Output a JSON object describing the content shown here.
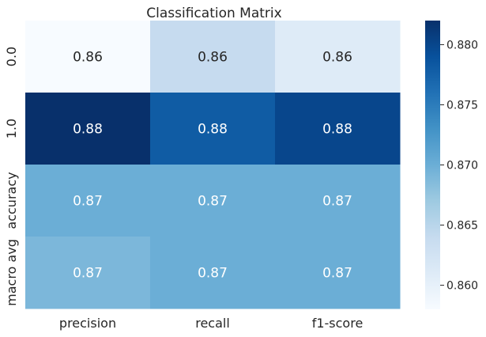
{
  "chart_data": {
    "type": "heatmap",
    "title": "Classification Matrix",
    "columns": [
      "precision",
      "recall",
      "f1-score"
    ],
    "rows": [
      "0.0",
      "1.0",
      "accuracy",
      "macro avg"
    ],
    "values": [
      [
        0.858,
        0.864,
        0.861
      ],
      [
        0.882,
        0.878,
        0.88
      ],
      [
        0.87,
        0.87,
        0.87
      ],
      [
        0.869,
        0.87,
        0.87
      ]
    ],
    "labels": [
      [
        "0.86",
        "0.86",
        "0.86"
      ],
      [
        "0.88",
        "0.88",
        "0.88"
      ],
      [
        "0.87",
        "0.87",
        "0.87"
      ],
      [
        "0.87",
        "0.87",
        "0.87"
      ]
    ],
    "colormap": "Blues",
    "colorbar": {
      "vmin": 0.858,
      "vmax": 0.882,
      "ticks": [
        0.86,
        0.865,
        0.87,
        0.875,
        0.88
      ],
      "tick_labels": [
        "0.860",
        "0.865",
        "0.870",
        "0.875",
        "0.880"
      ]
    }
  }
}
